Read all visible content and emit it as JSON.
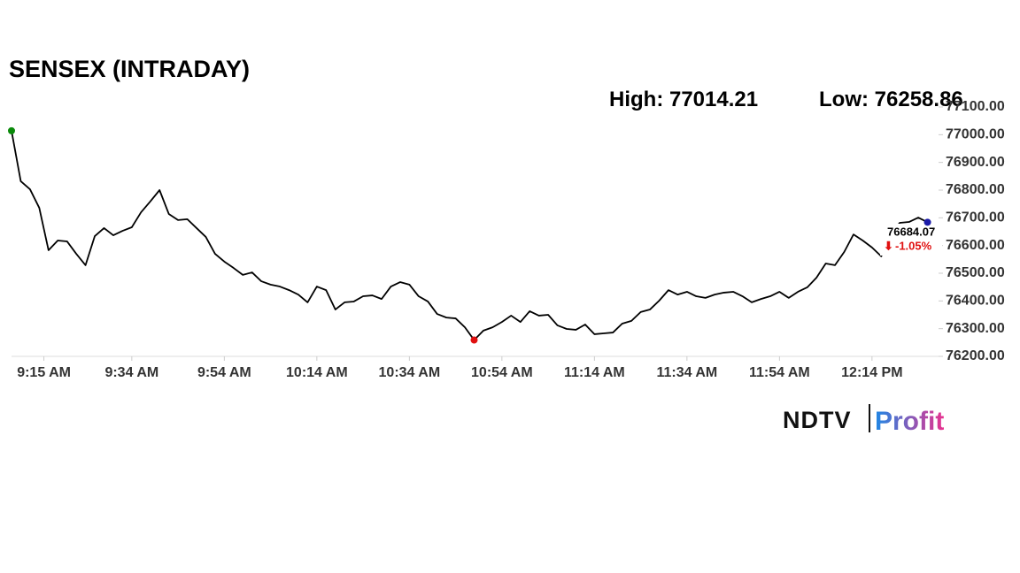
{
  "chart_data": {
    "type": "line",
    "title": "SENSEX (INTRADAY)",
    "annotations": {
      "high": "High:",
      "low": "Low:"
    },
    "change": {
      "value": -1.05,
      "label": "-1.05%"
    },
    "color": "#000000",
    "markers": {
      "start": "#0a8a0a",
      "low": "#e01010",
      "end": "#1a1aa8"
    },
    "x": [
      -7,
      -5,
      -3,
      -1,
      1,
      3,
      5,
      7,
      9,
      11,
      13,
      15,
      17,
      19,
      21,
      23,
      25,
      27,
      29,
      31,
      33,
      35,
      37,
      39,
      41,
      43,
      45,
      47,
      49,
      51,
      53,
      55,
      57,
      59,
      61,
      63,
      65,
      67,
      69,
      71,
      73,
      75,
      77,
      79,
      81,
      83,
      85,
      87,
      89,
      91,
      93,
      95,
      97,
      99,
      101,
      103,
      105,
      107,
      109,
      111,
      113,
      115,
      117,
      119,
      121,
      123,
      125,
      127,
      129,
      131,
      133,
      135,
      137,
      139,
      141,
      143,
      145,
      147,
      149,
      151,
      153,
      155,
      157,
      159,
      161,
      163,
      165,
      167,
      169,
      171,
      173,
      175,
      177,
      179,
      181,
      183,
      185,
      187,
      189,
      191
    ],
    "values": [
      77014.21,
      76832,
      76803,
      76736,
      76583,
      76618,
      76615,
      76570,
      76529,
      76634,
      76663,
      76637,
      76653,
      76666,
      76720,
      76759,
      76800,
      76714,
      76692,
      76695,
      76663,
      76631,
      76570,
      76542,
      76519,
      76494,
      76503,
      76471,
      76459,
      76452,
      76439,
      76423,
      76395,
      76452,
      76439,
      76369,
      76395,
      76398,
      76417,
      76420,
      76407,
      76452,
      76468,
      76459,
      76417,
      76398,
      76353,
      76340,
      76337,
      76305,
      76258.86,
      76293,
      76305,
      76324,
      76347,
      76324,
      76363,
      76347,
      76350,
      76312,
      76299,
      76296,
      76315,
      76280,
      76283,
      76286,
      76318,
      76328,
      76360,
      76369,
      76401,
      76439,
      76423,
      76433,
      76417,
      76411,
      76423,
      76430,
      76433,
      76417,
      76395,
      76407,
      76417,
      76433,
      76411,
      76433,
      76449,
      76484,
      76535,
      76529,
      76577,
      76640,
      76618,
      76593,
      76561,
      76640,
      76682,
      76685,
      76701,
      76684.07
    ],
    "xlim": [
      -7,
      193
    ],
    "xticks": [
      {
        "value": 0,
        "label": "9:15 AM"
      },
      {
        "value": 19,
        "label": "9:34 AM"
      },
      {
        "value": 39,
        "label": "9:54 AM"
      },
      {
        "value": 59,
        "label": "10:14 AM"
      },
      {
        "value": 79,
        "label": "10:34 AM"
      },
      {
        "value": 99,
        "label": "10:54 AM"
      },
      {
        "value": 119,
        "label": "11:14 AM"
      },
      {
        "value": 139,
        "label": "11:34 AM"
      },
      {
        "value": 159,
        "label": "11:54 AM"
      },
      {
        "value": 179,
        "label": "12:14 PM"
      }
    ],
    "ylim": [
      76200,
      77100
    ],
    "yticks": [
      {
        "value": 76200,
        "label": "76200.00"
      },
      {
        "value": 76300,
        "label": "76300.00"
      },
      {
        "value": 76400,
        "label": "76400.00"
      },
      {
        "value": 76500,
        "label": "76500.00"
      },
      {
        "value": 76600,
        "label": "76600.00"
      },
      {
        "value": 76700,
        "label": "76700.00"
      },
      {
        "value": 76800,
        "label": "76800.00"
      },
      {
        "value": 76900,
        "label": "76900.00"
      },
      {
        "value": 77000,
        "label": "77000.00"
      },
      {
        "value": 77100,
        "label": "77100.00"
      }
    ]
  },
  "logo": {
    "brand": "NDTV",
    "product": "Profit"
  }
}
